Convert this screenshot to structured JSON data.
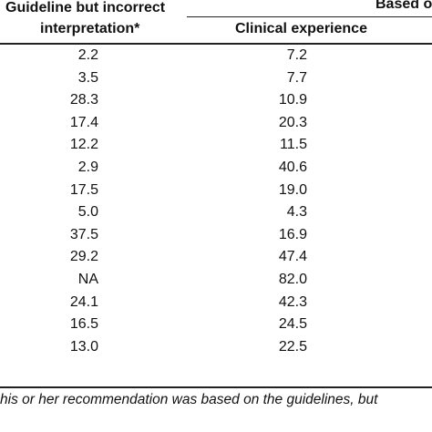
{
  "header": {
    "col1_line1": "Guideline but incorrect",
    "col1_line2": "interpretation*",
    "group_label": "Based o",
    "col2_label": "Clinical experience"
  },
  "rows": [
    {
      "c1": "2.2",
      "c2": "7.2"
    },
    {
      "c1": "3.5",
      "c2": "7.7"
    },
    {
      "c1": "28.3",
      "c2": "10.9"
    },
    {
      "c1": "17.4",
      "c2": "20.3"
    },
    {
      "c1": "12.2",
      "c2": "11.5"
    },
    {
      "c1": "2.9",
      "c2": "40.6"
    },
    {
      "c1": "17.5",
      "c2": "19.0"
    },
    {
      "c1": "5.0",
      "c2": "4.3"
    },
    {
      "c1": "37.5",
      "c2": "16.9"
    },
    {
      "c1": "29.2",
      "c2": "47.4"
    },
    {
      "c1": "NA",
      "c2": "82.0"
    },
    {
      "c1": "24.1",
      "c2": "42.3"
    },
    {
      "c1": "16.5",
      "c2": "24.5"
    },
    {
      "c1": "13.0",
      "c2": "22.5"
    }
  ],
  "footnote": "his or her recommendation was based on the guidelines, but"
}
